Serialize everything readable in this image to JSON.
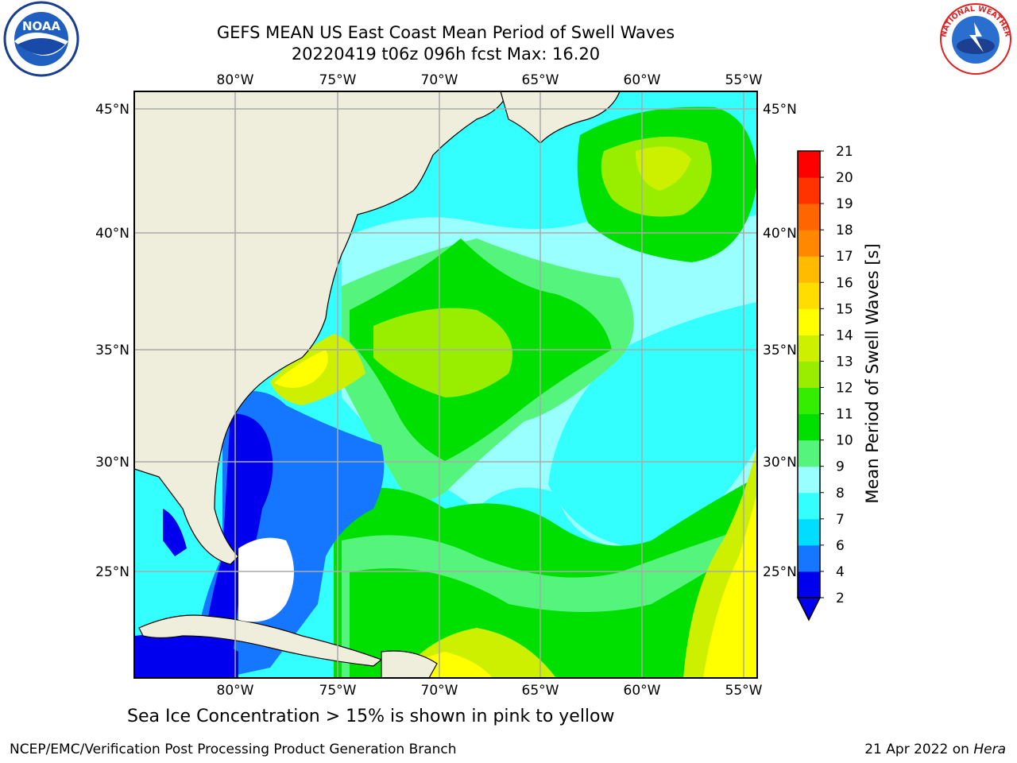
{
  "header": {
    "title_line1": "GEFS MEAN US East Coast Mean Period of Swell Waves",
    "title_line2": "20220419 t06z 096h fcst   Max: 16.20"
  },
  "map": {
    "lon_labels": [
      "80°W",
      "75°W",
      "70°W",
      "65°W",
      "60°W",
      "55°W"
    ],
    "lat_labels": [
      "45°N",
      "40°N",
      "35°N",
      "30°N",
      "25°N"
    ],
    "lon_range": [
      -84.5,
      -54.5
    ],
    "lat_range": [
      20.5,
      45.8
    ]
  },
  "colorbar": {
    "title": "Mean Period of Swell Waves [s]",
    "ticks": [
      "2",
      "4",
      "6",
      "7",
      "8",
      "9",
      "10",
      "11",
      "12",
      "13",
      "14",
      "15",
      "16",
      "17",
      "18",
      "19",
      "20",
      "21"
    ],
    "colors": [
      "#0000ee",
      "#1577ff",
      "#00ddff",
      "#33ffff",
      "#99ffff",
      "#55f57d",
      "#00e000",
      "#33ee00",
      "#99ee00",
      "#ccf000",
      "#ffff00",
      "#ffdd00",
      "#ffbb00",
      "#ff8800",
      "#ff6600",
      "#ff3300",
      "#ff0000"
    ]
  },
  "caption": "Sea Ice Concentration > 15% is shown in pink to yellow",
  "footer": {
    "left": "NCEP/EMC/Verification Post Processing Product Generation Branch",
    "date": "21 Apr 2022 on ",
    "host": "Hera"
  },
  "logos": {
    "left": "noaa-logo",
    "right": "nws-logo",
    "left_text": "NOAA",
    "right_text": "NATIONAL WEATHER SERVICE"
  }
}
